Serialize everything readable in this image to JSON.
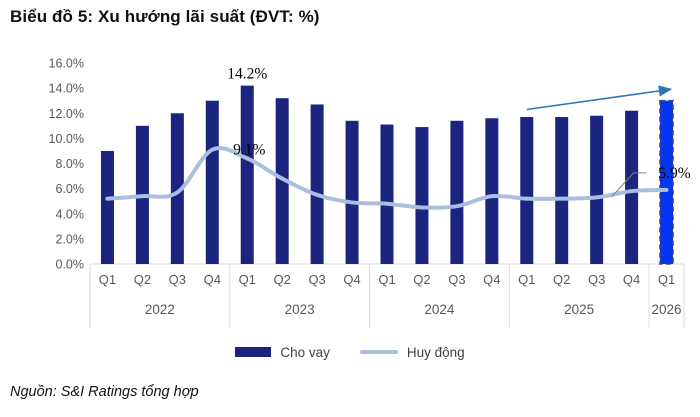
{
  "header": {
    "title": "Biểu đồ 5: Xu hướng lãi suất (ĐVT: %)"
  },
  "footer": {
    "source": "Nguồn: S&I Ratings tổng hợp"
  },
  "legend": {
    "items": [
      {
        "label": "Cho vay",
        "swatch": "bar",
        "color": "#1B2580"
      },
      {
        "label": "Huy động",
        "swatch": "line",
        "color": "#A9BFDF"
      }
    ]
  },
  "chart_data": {
    "type": "bar",
    "subtype": "bar+line combo, quarterly",
    "unit": "%",
    "categories": [
      "Q1",
      "Q2",
      "Q3",
      "Q4",
      "Q1",
      "Q2",
      "Q3",
      "Q4",
      "Q1",
      "Q2",
      "Q3",
      "Q4",
      "Q1",
      "Q2",
      "Q3",
      "Q4",
      "Q1"
    ],
    "year_groups": [
      {
        "label": "2022",
        "count": 4
      },
      {
        "label": "2023",
        "count": 4
      },
      {
        "label": "2024",
        "count": 4
      },
      {
        "label": "2025",
        "count": 4
      },
      {
        "label": "2026",
        "count": 1
      }
    ],
    "series": [
      {
        "name": "Cho vay",
        "type": "bar",
        "color": "#1B2580",
        "values": [
          9.0,
          11.0,
          12.0,
          13.0,
          14.2,
          13.2,
          12.7,
          11.4,
          11.1,
          10.9,
          11.4,
          11.6,
          11.7,
          11.7,
          11.8,
          12.2,
          13.0
        ],
        "highlight_last_bar": {
          "color": "#0535F0",
          "stroke": "#3A4668",
          "dashed": true
        }
      },
      {
        "name": "Huy động",
        "type": "line",
        "color": "#A9BFDF",
        "values": [
          5.2,
          5.4,
          5.7,
          9.1,
          8.4,
          6.8,
          5.5,
          4.9,
          4.8,
          4.5,
          4.6,
          5.4,
          5.2,
          5.2,
          5.3,
          5.8,
          5.9
        ]
      }
    ],
    "data_labels": [
      {
        "text": "14.2%",
        "series": "Cho vay",
        "index": 4,
        "placement": "above"
      },
      {
        "text": "9.1%",
        "series": "Huy động",
        "index": 3,
        "placement": "right"
      },
      {
        "text": "5.9%",
        "series": "Huy động",
        "index": 16,
        "placement": "callout"
      }
    ],
    "trend_arrow": {
      "from_index": 12,
      "from_value": 12.3,
      "to_index": 16.1,
      "to_value": 13.9,
      "color": "#2E75B6"
    },
    "y_axis": {
      "min": 0,
      "max": 16,
      "step": 2,
      "tick_labels": [
        "16.0%",
        "14.0%",
        "12.0%",
        "10.0%",
        "8.0%",
        "6.0%",
        "4.0%",
        "2.0%",
        "0.0%"
      ]
    },
    "grid": false,
    "axis_color": "#D9D9D9",
    "tick_text_color": "#595959",
    "legend_position": "bottom"
  }
}
